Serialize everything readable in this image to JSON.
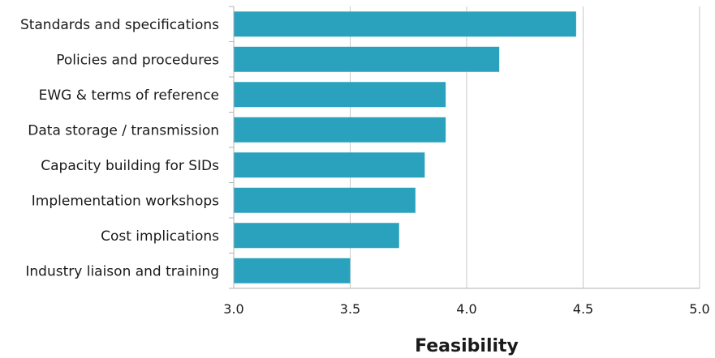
{
  "chart_data": {
    "type": "bar",
    "orientation": "horizontal",
    "categories": [
      "Standards and specifications",
      "Policies and procedures",
      "EWG & terms of reference",
      "Data storage / transmission",
      "Capacity building for SIDs",
      "Implementation workshops",
      "Cost implications",
      "Industry liaison and training"
    ],
    "values": [
      4.47,
      4.14,
      3.91,
      3.91,
      3.82,
      3.78,
      3.71,
      3.5
    ],
    "xlabel": "Feasibility",
    "ylabel": "",
    "xlim": [
      3.0,
      5.0
    ],
    "xticks": [
      "3.0",
      "3.5",
      "4.0",
      "4.5",
      "5.0"
    ],
    "grid": true,
    "bar_color": "#2aa1bd",
    "grid_color": "#c8c8c8"
  }
}
